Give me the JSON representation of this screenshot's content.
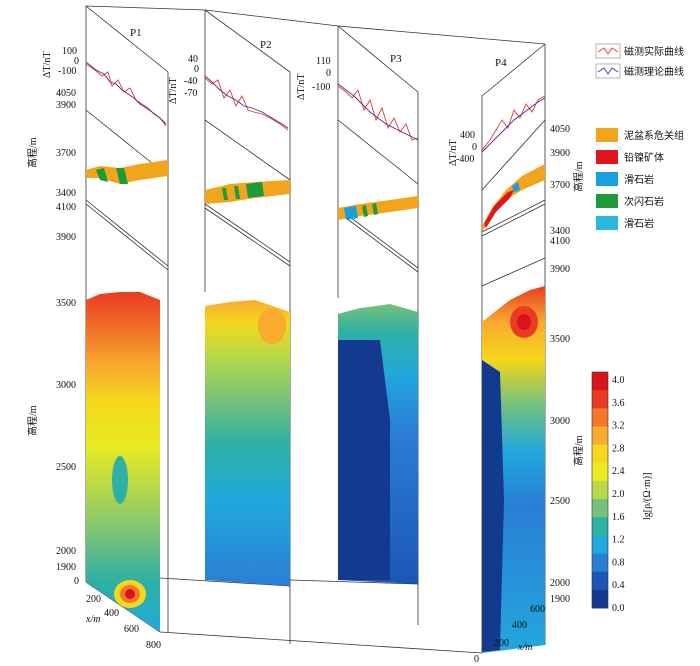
{
  "profiles": [
    {
      "id": "P1",
      "label": "P1"
    },
    {
      "id": "P2",
      "label": "P2"
    },
    {
      "id": "P3",
      "label": "P3"
    },
    {
      "id": "P4",
      "label": "P4"
    }
  ],
  "magnetic_axis": {
    "title": "ΔT/nT",
    "p1_ticks": [
      "100",
      "0",
      "-100"
    ],
    "p2_ticks": [
      "40",
      "0",
      "-40",
      "-70"
    ],
    "p3_ticks": [
      "110",
      "0",
      "-100"
    ],
    "p4_ticks": [
      "400",
      "0",
      "-400"
    ]
  },
  "elevation_axis": {
    "title": "高程/m",
    "geology_left_ticks": [
      "4050",
      "3900",
      "3700",
      "3400"
    ],
    "geology_right_ticks": [
      "4050",
      "3900",
      "3700",
      "3400"
    ],
    "resistivity_left_ticks": [
      "4100",
      "3900",
      "3500",
      "3000",
      "2500",
      "2000",
      "1900"
    ],
    "resistivity_right_ticks": [
      "4100",
      "3900",
      "3500",
      "3000",
      "2500",
      "2000",
      "1900"
    ]
  },
  "x_axis": {
    "title": "x/m",
    "left_ticks": [
      "0",
      "200",
      "400",
      "600",
      "800"
    ],
    "right_ticks": [
      "0",
      "200",
      "400",
      "600"
    ]
  },
  "magnetic_legend": [
    {
      "label": "磁测实际曲线",
      "color": "#e03a3a"
    },
    {
      "label": "磁测理论曲线",
      "color": "#5a2a8a"
    }
  ],
  "geology_legend": [
    {
      "label": "泥盆系危关组",
      "color": "#f2a51a"
    },
    {
      "label": "铅镍矿体",
      "color": "#e0161e"
    },
    {
      "label": "滑石岩",
      "color": "#1aa0e0"
    },
    {
      "label": "次闪石岩",
      "color": "#1e9a3a"
    },
    {
      "label": "滑石岩",
      "color": "#2ab8dc"
    }
  ],
  "colorbar": {
    "title": "lg[ρ/(Ω·m)]",
    "ticks": [
      "4.0",
      "3.6",
      "3.2",
      "2.8",
      "2.4",
      "2.0",
      "1.6",
      "1.2",
      "0.8",
      "0.4",
      "0.0"
    ],
    "colors": [
      "#d9141c",
      "#ea3c22",
      "#f2772a",
      "#f8ab2e",
      "#f5d71c",
      "#e8ea22",
      "#b6d84a",
      "#76c27a",
      "#2fb0a4",
      "#21a8dc",
      "#2a7ed6",
      "#1c56b6",
      "#143a90"
    ]
  }
}
